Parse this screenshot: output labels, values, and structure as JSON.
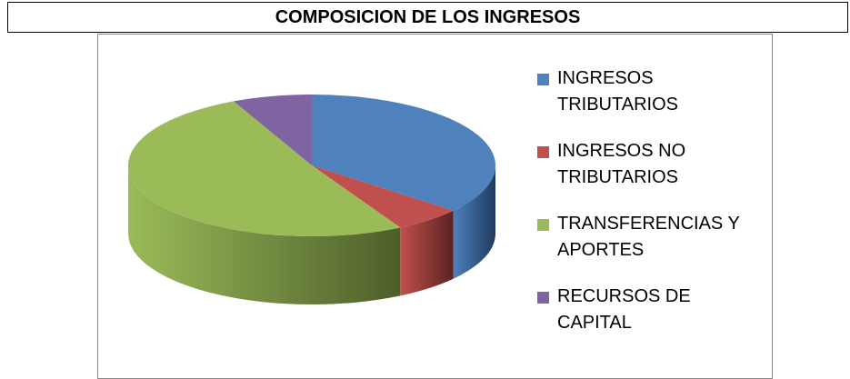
{
  "chart_data": {
    "type": "pie",
    "title": "COMPOSICION DE LOS INGRESOS",
    "categories": [
      "INGRESOS TRIBUTARIOS",
      "INGRESOS NO TRIBUTARIOS",
      "TRANSFERENCIAS Y APORTES",
      "RECURSOS DE CAPITAL"
    ],
    "values": [
      36,
      6,
      51,
      7
    ],
    "colors": [
      "#4f81bd",
      "#c0504d",
      "#9bbb59",
      "#8064a2"
    ],
    "side_colors": [
      "#1f3a5f",
      "#5a2322",
      "#4d5e2a",
      "#3f3152"
    ],
    "legend": "right"
  }
}
